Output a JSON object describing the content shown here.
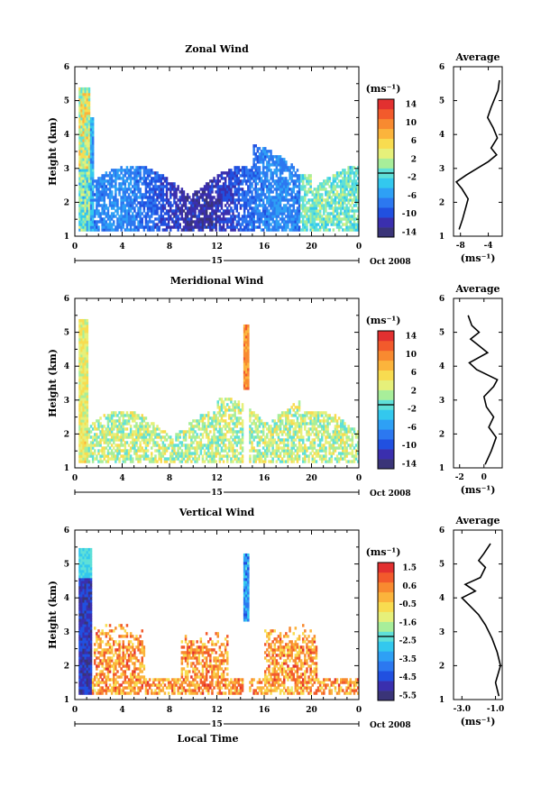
{
  "figure": {
    "date_label": "Oct 2008",
    "day_label": "15",
    "xlabel_bottom": "Local Time",
    "units_label": "(ms⁻¹)",
    "height_label": "Height (km)",
    "avg_title": "Average",
    "x_ticks": [
      "0",
      "4",
      "8",
      "12",
      "16",
      "20",
      "0"
    ],
    "y_ticks": [
      "1",
      "2",
      "3",
      "4",
      "5",
      "6"
    ]
  },
  "chart_data": [
    {
      "type": "heatmap",
      "title": "Zonal Wind",
      "ylabel": "Height (km)",
      "xlim": [
        0,
        24
      ],
      "ylim": [
        1,
        6
      ],
      "colorbar": {
        "label": "(ms⁻¹)",
        "ticks": [
          "14",
          "10",
          "6",
          "2",
          "-2",
          "-6",
          "-10",
          "-14"
        ],
        "range": [
          -16,
          16
        ]
      },
      "average_profile": {
        "title": "Average",
        "xlabel": "(ms⁻¹)",
        "xticks": [
          "-8",
          "-4"
        ],
        "xlim": [
          -9,
          -2
        ],
        "profile": [
          [
            -8.2,
            1.2
          ],
          [
            -7.7,
            1.5
          ],
          [
            -7.3,
            1.8
          ],
          [
            -6.9,
            2.1
          ],
          [
            -7.8,
            2.4
          ],
          [
            -8.6,
            2.6
          ],
          [
            -7.2,
            2.8
          ],
          [
            -5.6,
            3.0
          ],
          [
            -4.0,
            3.2
          ],
          [
            -2.8,
            3.4
          ],
          [
            -3.6,
            3.6
          ],
          [
            -2.7,
            3.9
          ],
          [
            -3.3,
            4.2
          ],
          [
            -4.1,
            4.5
          ],
          [
            -3.6,
            4.8
          ],
          [
            -3.0,
            5.1
          ],
          [
            -2.6,
            5.3
          ],
          [
            -2.4,
            5.6
          ]
        ]
      }
    },
    {
      "type": "heatmap",
      "title": "Meridional Wind",
      "ylabel": "Height (km)",
      "xlim": [
        0,
        24
      ],
      "ylim": [
        1,
        6
      ],
      "colorbar": {
        "label": "(ms⁻¹)",
        "ticks": [
          "14",
          "10",
          "6",
          "2",
          "-2",
          "-6",
          "-10",
          "-14"
        ],
        "range": [
          -16,
          16
        ]
      },
      "average_profile": {
        "title": "Average",
        "xlabel": "(ms⁻¹)",
        "xticks": [
          "-2",
          "0"
        ],
        "xlim": [
          -2.5,
          1.5
        ],
        "profile": [
          [
            0.1,
            1.1
          ],
          [
            0.6,
            1.5
          ],
          [
            1.0,
            1.9
          ],
          [
            0.4,
            2.2
          ],
          [
            0.8,
            2.5
          ],
          [
            0.2,
            2.8
          ],
          [
            0.0,
            3.1
          ],
          [
            0.8,
            3.4
          ],
          [
            1.1,
            3.6
          ],
          [
            -0.6,
            3.9
          ],
          [
            -1.2,
            4.1
          ],
          [
            0.3,
            4.4
          ],
          [
            -0.4,
            4.6
          ],
          [
            -1.1,
            4.8
          ],
          [
            -0.4,
            5.0
          ],
          [
            -1.0,
            5.2
          ],
          [
            -1.3,
            5.5
          ]
        ]
      }
    },
    {
      "type": "heatmap",
      "title": "Vertical Wind",
      "ylabel": "Height (km)",
      "xlabel": "Local Time",
      "xlim": [
        0,
        24
      ],
      "ylim": [
        1,
        6
      ],
      "colorbar": {
        "label": "(ms⁻¹)",
        "ticks": [
          "1.5",
          "0.6",
          "-0.5",
          "-1.6",
          "-2.5",
          "-3.5",
          "-4.5",
          "-5.5"
        ],
        "range": [
          -6,
          2
        ]
      },
      "average_profile": {
        "title": "Average",
        "xlabel": "(ms⁻¹)",
        "xticks": [
          "-3.0",
          "-1.0"
        ],
        "xlim": [
          -3.5,
          -0.6
        ],
        "profile": [
          [
            -0.8,
            1.1
          ],
          [
            -1.0,
            1.5
          ],
          [
            -0.7,
            2.0
          ],
          [
            -0.9,
            2.4
          ],
          [
            -1.2,
            2.8
          ],
          [
            -1.6,
            3.2
          ],
          [
            -2.0,
            3.5
          ],
          [
            -2.6,
            3.8
          ],
          [
            -3.0,
            4.0
          ],
          [
            -2.2,
            4.2
          ],
          [
            -2.8,
            4.4
          ],
          [
            -1.9,
            4.6
          ],
          [
            -1.6,
            4.9
          ],
          [
            -2.0,
            5.1
          ],
          [
            -1.7,
            5.3
          ],
          [
            -1.3,
            5.6
          ]
        ]
      }
    }
  ]
}
